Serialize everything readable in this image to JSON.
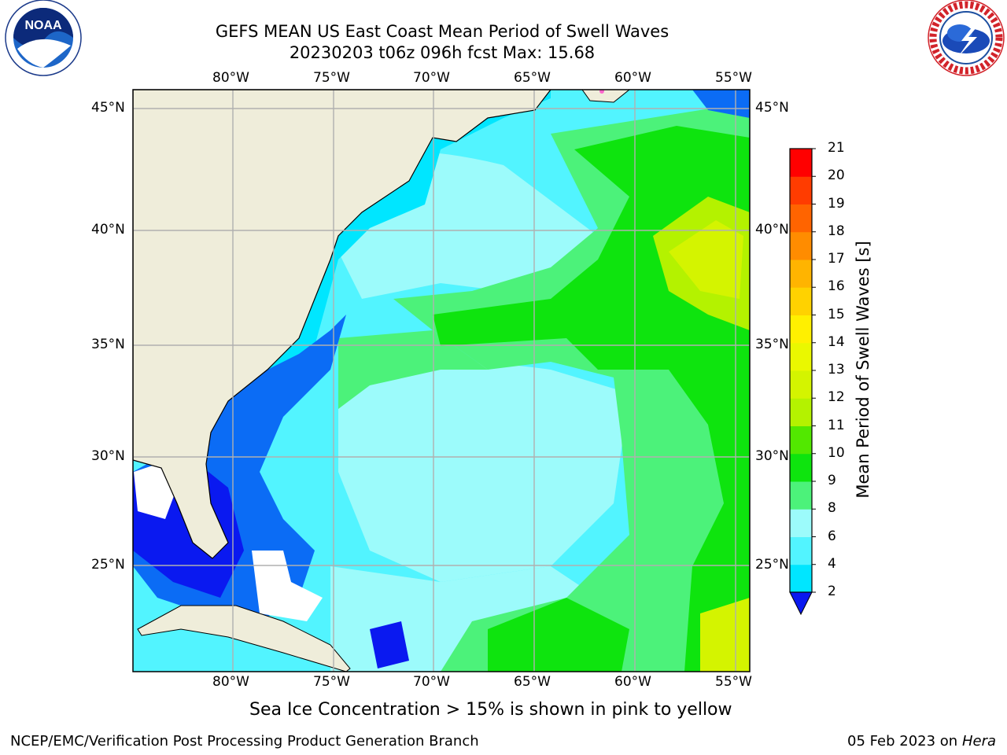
{
  "title": {
    "line1": "GEFS MEAN US East Coast Mean Period of Swell Waves",
    "line2": "20230203 t06z 096h fcst   Max: 15.68"
  },
  "map": {
    "lon_ticks": [
      "80°W",
      "75°W",
      "70°W",
      "65°W",
      "60°W",
      "55°W"
    ],
    "lat_ticks": [
      "45°N",
      "40°N",
      "35°N",
      "30°N",
      "25°N"
    ],
    "colors": {
      "land": "#efedda",
      "coast": "#000000",
      "grid": "#b0b0b0",
      "no_data": "#ffffff"
    }
  },
  "colorbar": {
    "label": "Mean Period of Swell Waves [s]",
    "ticks": [
      "2",
      "4",
      "6",
      "8",
      "9",
      "10",
      "11",
      "12",
      "13",
      "14",
      "15",
      "16",
      "17",
      "18",
      "19",
      "20",
      "21"
    ],
    "colors": [
      "#0b6cf5",
      "#00e6ff",
      "#52f4ff",
      "#9cfbfb",
      "#4cf27a",
      "#0ee40e",
      "#52e800",
      "#b4f200",
      "#d4f400",
      "#eaf800",
      "#fff000",
      "#ffd200",
      "#ffb400",
      "#ff8c00",
      "#ff6400",
      "#ff3c00",
      "#ff0000"
    ],
    "under_color": "#0a19f0"
  },
  "logos": {
    "left": {
      "text": "NOAA",
      "icon": "noaa-logo-icon"
    },
    "right": {
      "icon": "nws-logo-icon"
    }
  },
  "caption": "Sea Ice Concentration > 15% is shown in pink to yellow",
  "footer": {
    "credit": "NCEP/EMC/Verification Post Processing Product Generation Branch",
    "date": "05 Feb 2023 on",
    "machine": "Hera"
  }
}
